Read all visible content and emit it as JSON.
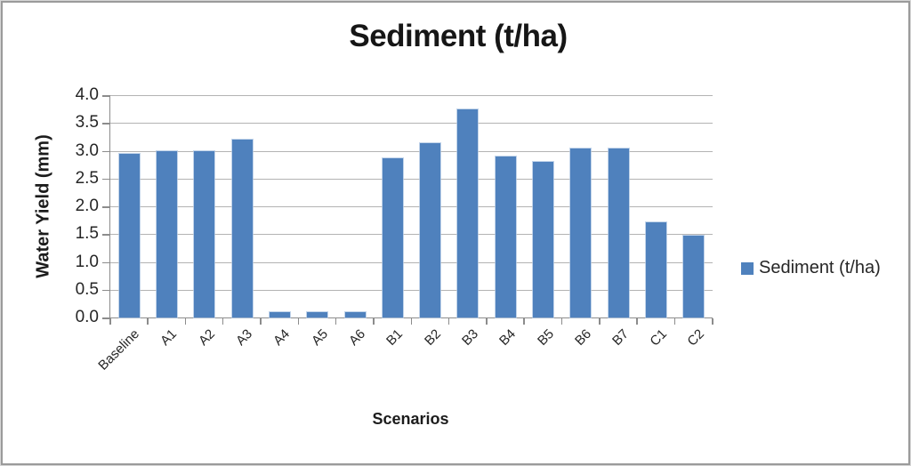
{
  "title": "Sediment (t/ha)",
  "axes": {
    "y_title": "Water Yield (mm)",
    "x_title": "Scenarios",
    "y_ticks": [
      "4.0",
      "3.5",
      "3.0",
      "2.5",
      "2.0",
      "1.5",
      "1.0",
      "0.5",
      "0.0"
    ]
  },
  "legend": {
    "label": "Sediment (t/ha)",
    "swatch_color": "#4f81bd"
  },
  "colors": {
    "bar": "#4f81bd",
    "gridline": "#b3b3b3",
    "axis_line": "#8c8c8c",
    "frame_border": "#9a9a9a"
  },
  "chart_data": {
    "type": "bar",
    "title": "Sediment (t/ha)",
    "xlabel": "Scenarios",
    "ylabel": "Water Yield (mm)",
    "ylim": [
      0.0,
      4.0
    ],
    "ytick_step": 0.5,
    "grid": true,
    "legend_position": "right",
    "bar_color": "#4f81bd",
    "categories": [
      "Baseline",
      "A1",
      "A2",
      "A3",
      "A4",
      "A5",
      "A6",
      "B1",
      "B2",
      "B3",
      "B4",
      "B5",
      "B6",
      "B7",
      "C1",
      "C2"
    ],
    "series": [
      {
        "name": "Sediment (t/ha)",
        "values": [
          2.95,
          3.0,
          3.0,
          3.2,
          0.1,
          0.1,
          0.1,
          2.87,
          3.14,
          3.74,
          2.89,
          2.8,
          3.04,
          3.04,
          1.71,
          1.47
        ]
      }
    ]
  }
}
